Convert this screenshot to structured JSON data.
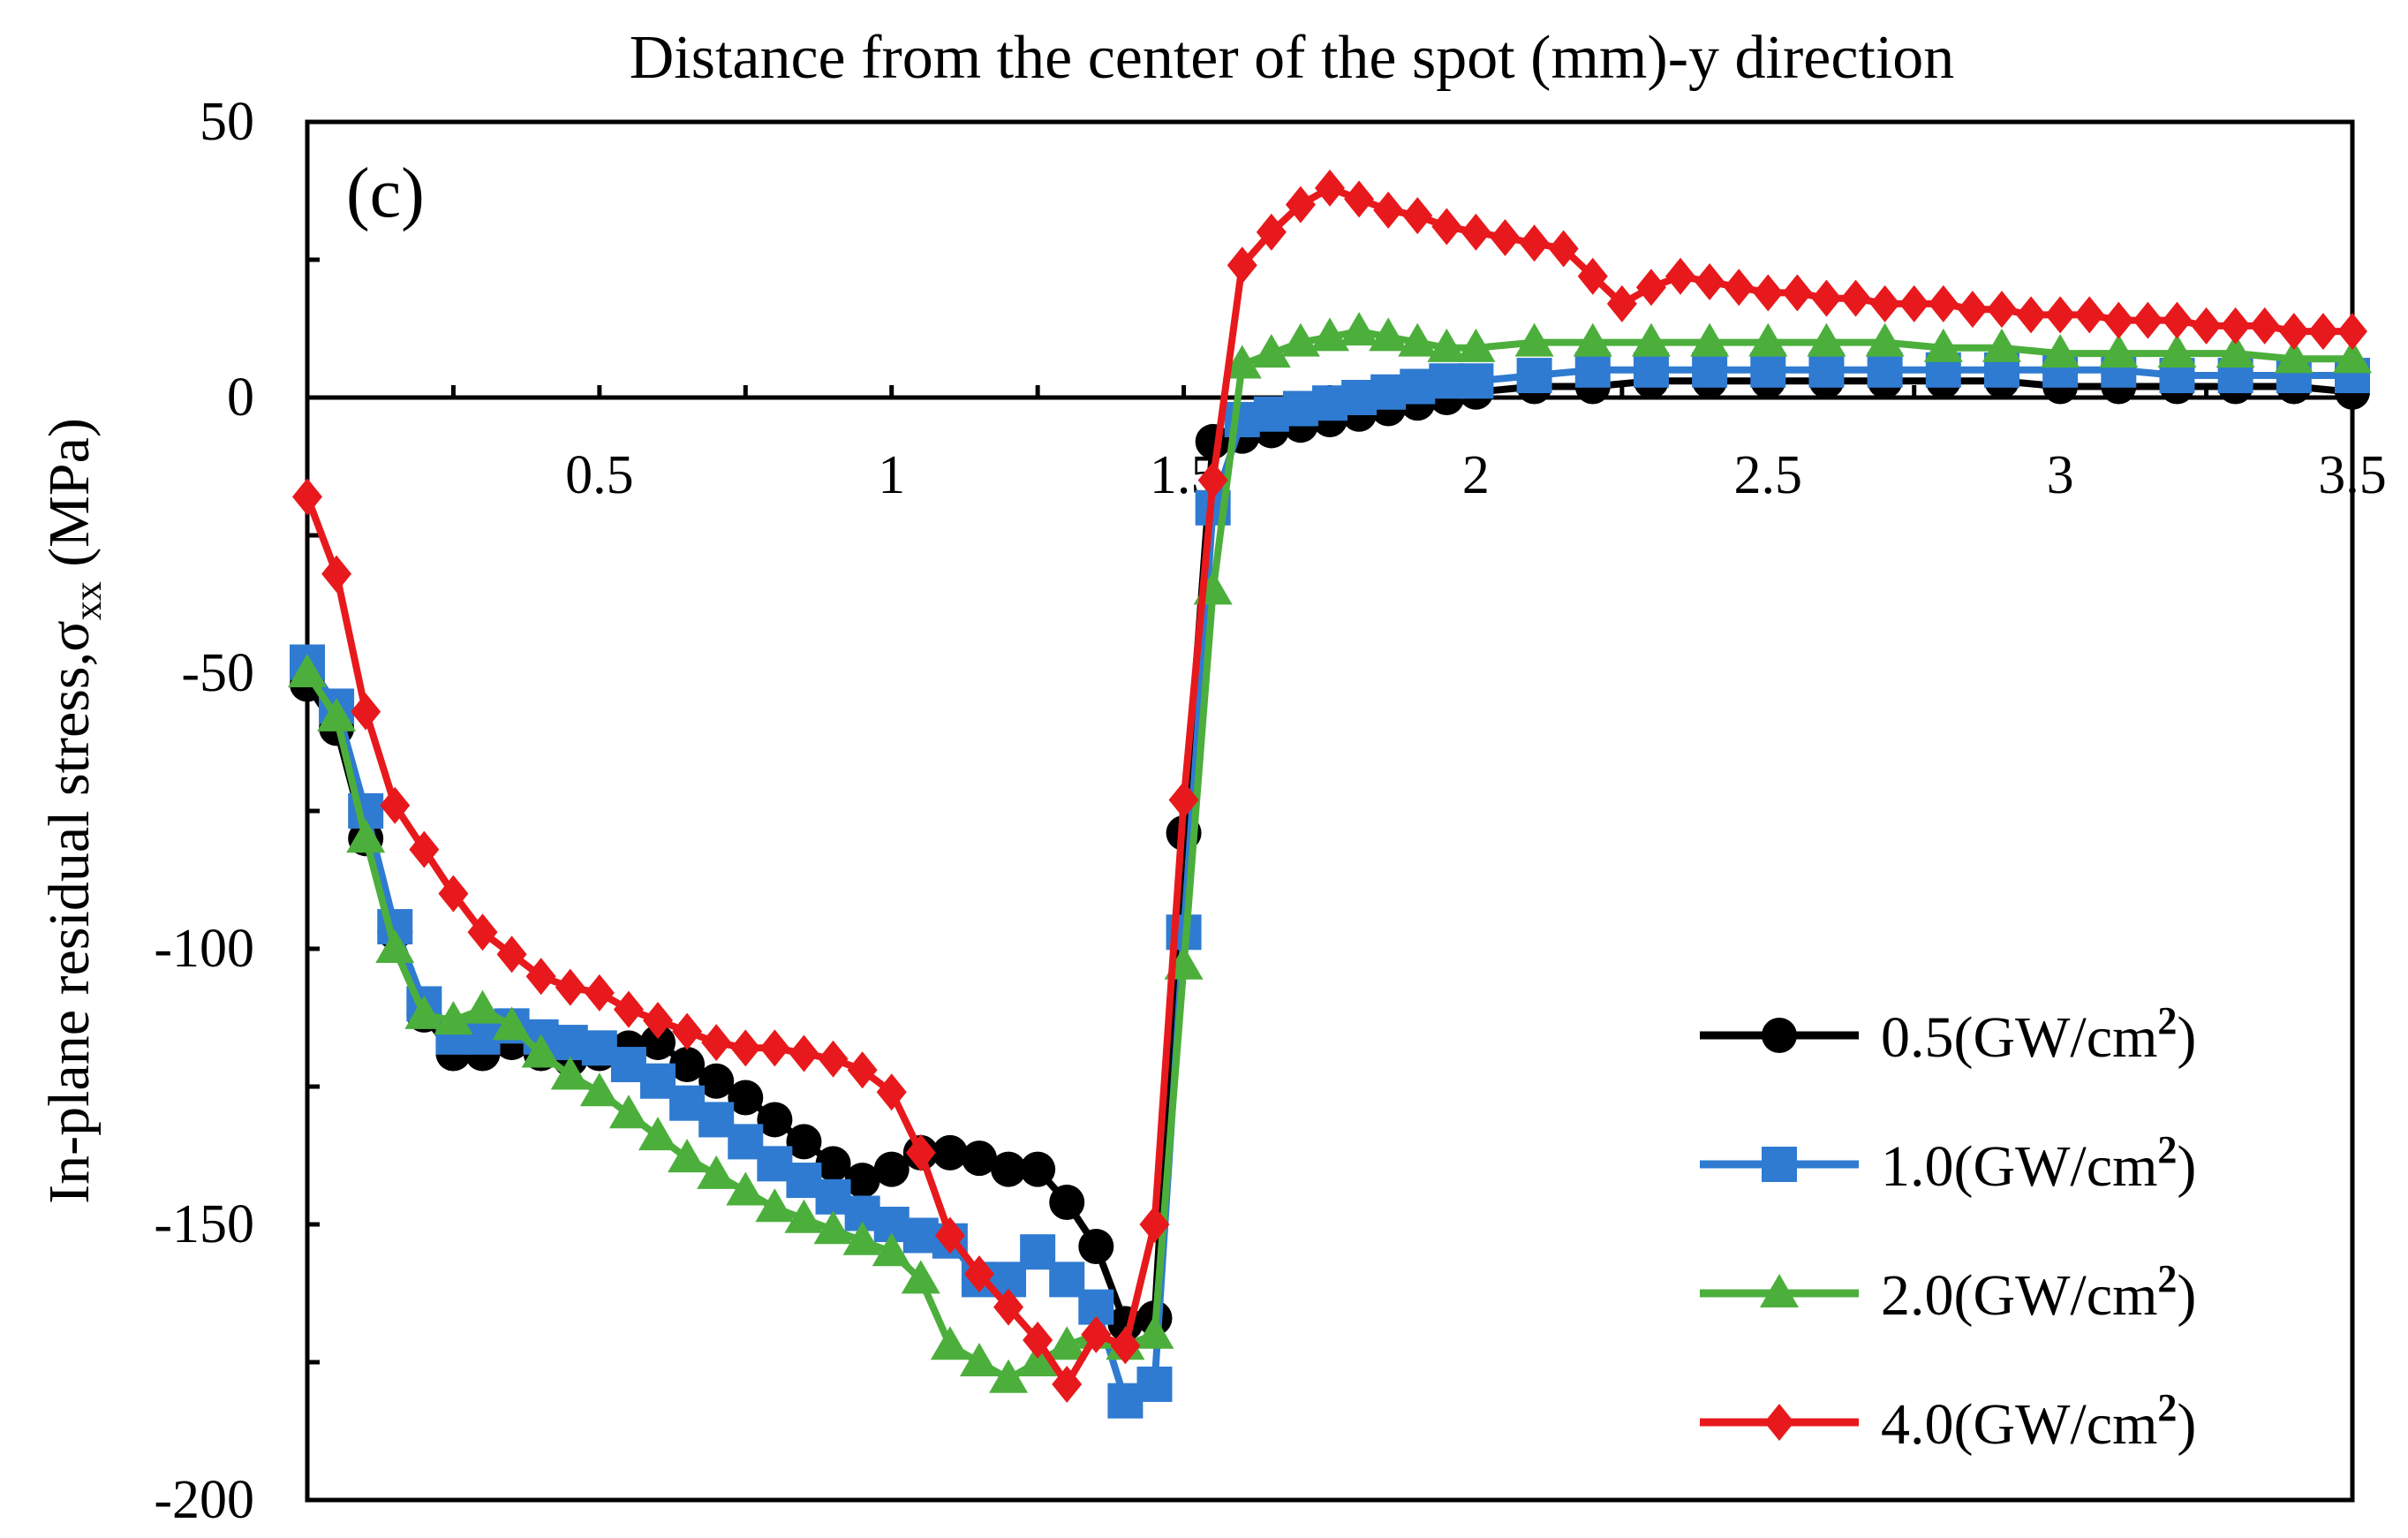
{
  "chart_data": {
    "type": "line",
    "title": "Distance from the center of the spot (mm)-y direction",
    "panel_label": "(c)",
    "xlabel": "Distance from the center of the spot (mm)-y direction",
    "ylabel_main": "In-plane residual stress,σ",
    "ylabel_sub": "xx",
    "ylabel_unit": " (MPa)",
    "xlim": [
      0,
      3.5
    ],
    "ylim": [
      -200,
      50
    ],
    "x_ticks": [
      0.5,
      1,
      1.5,
      2,
      2.5,
      3,
      3.5
    ],
    "x_tick_labels": [
      "0.5",
      "1",
      "1.5",
      "2",
      "2.5",
      "3",
      "3.5"
    ],
    "y_ticks": [
      50,
      0,
      -50,
      -100,
      -150,
      -200
    ],
    "y_tick_labels": [
      "50",
      "0",
      "-50",
      "-100",
      "-150",
      "-200"
    ],
    "legend_position": "bottom-right",
    "series": [
      {
        "name": "0.5(GW/cm²)",
        "label_main": "0.5(GW/cm",
        "label_sup": "2",
        "label_end": ")",
        "color": "#000000",
        "marker": "circle",
        "x": [
          0,
          0.05,
          0.1,
          0.15,
          0.2,
          0.25,
          0.3,
          0.35,
          0.4,
          0.45,
          0.5,
          0.55,
          0.6,
          0.65,
          0.7,
          0.75,
          0.8,
          0.85,
          0.9,
          0.95,
          1.0,
          1.05,
          1.1,
          1.15,
          1.2,
          1.25,
          1.3,
          1.35,
          1.4,
          1.45,
          1.5,
          1.55,
          1.6,
          1.65,
          1.7,
          1.75,
          1.8,
          1.85,
          1.9,
          1.95,
          2.0,
          2.1,
          2.2,
          2.3,
          2.4,
          2.5,
          2.6,
          2.7,
          2.8,
          2.9,
          3.0,
          3.1,
          3.2,
          3.3,
          3.4,
          3.5
        ],
        "y": [
          -52,
          -60,
          -80,
          -97,
          -112,
          -119,
          -119,
          -117,
          -119,
          -120,
          -119,
          -118,
          -117,
          -121,
          -124,
          -127,
          -131,
          -135,
          -139,
          -142,
          -140,
          -137,
          -137,
          -138,
          -140,
          -140,
          -146,
          -154,
          -168,
          -167,
          -79,
          -8,
          -7,
          -6,
          -5,
          -4,
          -3,
          -2,
          -1,
          0,
          1,
          2,
          2,
          3,
          3,
          3,
          3,
          3,
          3,
          3,
          2,
          2,
          2,
          2,
          2,
          1
        ]
      },
      {
        "name": "1.0(GW/cm²)",
        "label_main": "1.0(GW/cm",
        "label_sup": "2",
        "label_end": ")",
        "color": "#2f7bd1",
        "marker": "square",
        "x": [
          0,
          0.05,
          0.1,
          0.15,
          0.2,
          0.25,
          0.3,
          0.35,
          0.4,
          0.45,
          0.5,
          0.55,
          0.6,
          0.65,
          0.7,
          0.75,
          0.8,
          0.85,
          0.9,
          0.95,
          1.0,
          1.05,
          1.1,
          1.15,
          1.2,
          1.25,
          1.3,
          1.35,
          1.4,
          1.45,
          1.5,
          1.55,
          1.6,
          1.65,
          1.7,
          1.75,
          1.8,
          1.85,
          1.9,
          1.95,
          2.0,
          2.1,
          2.2,
          2.3,
          2.4,
          2.5,
          2.6,
          2.7,
          2.8,
          2.9,
          3.0,
          3.1,
          3.2,
          3.3,
          3.4,
          3.5
        ],
        "y": [
          -48,
          -56,
          -75,
          -96,
          -110,
          -116,
          -116,
          -114,
          -116,
          -117,
          -118,
          -121,
          -124,
          -128,
          -131,
          -135,
          -139,
          -142,
          -145,
          -148,
          -150,
          -152,
          -153,
          -160,
          -160,
          -155,
          -160,
          -165,
          -182,
          -179,
          -97,
          -20,
          -4,
          -3,
          -2,
          -1,
          0,
          1,
          2,
          3,
          3,
          4,
          5,
          5,
          5,
          5,
          5,
          5,
          5,
          5,
          5,
          5,
          4,
          4,
          4,
          4
        ]
      },
      {
        "name": "2.0(GW/cm²)",
        "label_main": "2.0(GW/cm",
        "label_sup": "2",
        "label_end": ")",
        "color": "#4caf3c",
        "marker": "triangle",
        "x": [
          0,
          0.05,
          0.1,
          0.15,
          0.2,
          0.25,
          0.3,
          0.35,
          0.4,
          0.45,
          0.5,
          0.55,
          0.6,
          0.65,
          0.7,
          0.75,
          0.8,
          0.85,
          0.9,
          0.95,
          1.0,
          1.05,
          1.1,
          1.15,
          1.2,
          1.25,
          1.3,
          1.35,
          1.4,
          1.45,
          1.5,
          1.55,
          1.6,
          1.65,
          1.7,
          1.75,
          1.8,
          1.85,
          1.9,
          1.95,
          2.0,
          2.1,
          2.2,
          2.3,
          2.4,
          2.5,
          2.6,
          2.7,
          2.8,
          2.9,
          3.0,
          3.1,
          3.2,
          3.3,
          3.4,
          3.5
        ],
        "y": [
          -50,
          -58,
          -80,
          -100,
          -112,
          -113,
          -111,
          -114,
          -119,
          -123,
          -126,
          -130,
          -134,
          -138,
          -141,
          -144,
          -147,
          -149,
          -151,
          -153,
          -155,
          -160,
          -172,
          -175,
          -178,
          -175,
          -172,
          -170,
          -172,
          -170,
          -103,
          -35,
          6,
          8,
          10,
          11,
          12,
          11,
          10,
          9,
          9,
          10,
          10,
          10,
          10,
          10,
          10,
          10,
          9,
          9,
          8,
          8,
          8,
          8,
          7,
          7
        ]
      },
      {
        "name": "4.0(GW/cm²)",
        "label_main": "4.0(GW/cm",
        "label_sup": "2",
        "label_end": ")",
        "color": "#e8191c",
        "marker": "diamond",
        "x": [
          0,
          0.05,
          0.1,
          0.15,
          0.2,
          0.25,
          0.3,
          0.35,
          0.4,
          0.45,
          0.5,
          0.55,
          0.6,
          0.65,
          0.7,
          0.75,
          0.8,
          0.85,
          0.9,
          0.95,
          1.0,
          1.05,
          1.1,
          1.15,
          1.2,
          1.25,
          1.3,
          1.35,
          1.4,
          1.45,
          1.5,
          1.55,
          1.6,
          1.65,
          1.7,
          1.75,
          1.8,
          1.85,
          1.9,
          1.95,
          2.0,
          2.05,
          2.1,
          2.15,
          2.2,
          2.25,
          2.3,
          2.35,
          2.4,
          2.45,
          2.5,
          2.55,
          2.6,
          2.65,
          2.7,
          2.75,
          2.8,
          2.85,
          2.9,
          2.95,
          3.0,
          3.05,
          3.1,
          3.15,
          3.2,
          3.25,
          3.3,
          3.35,
          3.4,
          3.45,
          3.5
        ],
        "y": [
          -18,
          -32,
          -57,
          -74,
          -82,
          -90,
          -97,
          -101,
          -105,
          -107,
          -108,
          -111,
          -113,
          -115,
          -117,
          -118,
          -118,
          -119,
          -120,
          -122,
          -126,
          -137,
          -152,
          -159,
          -165,
          -171,
          -179,
          -170,
          -172,
          -150,
          -73,
          -15,
          24,
          30,
          35,
          38,
          36,
          34,
          33,
          31,
          30,
          29,
          28,
          27,
          22,
          17,
          20,
          22,
          21,
          20,
          19,
          19,
          18,
          18,
          17,
          17,
          17,
          16,
          16,
          15,
          15,
          15,
          14,
          14,
          14,
          13,
          13,
          13,
          12,
          12,
          12
        ]
      }
    ]
  }
}
